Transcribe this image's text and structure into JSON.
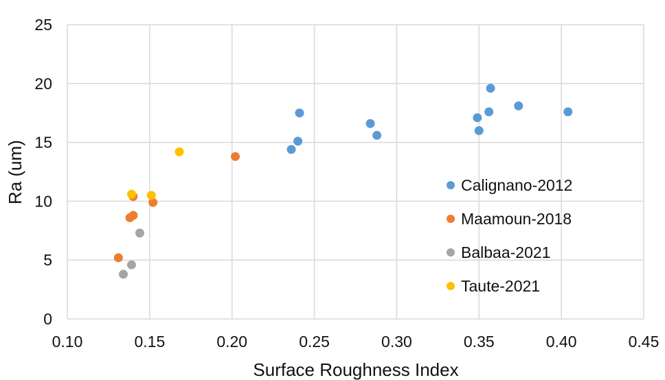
{
  "chart_data": {
    "type": "scatter",
    "title": "",
    "xlabel": "Surface Roughness Index",
    "ylabel": "Ra (um)",
    "xlim": [
      0.1,
      0.45
    ],
    "ylim": [
      0,
      25
    ],
    "x_ticks": [
      "0.10",
      "0.15",
      "0.20",
      "0.25",
      "0.30",
      "0.35",
      "0.40",
      "0.45"
    ],
    "y_ticks": [
      "0",
      "5",
      "10",
      "15",
      "20",
      "25"
    ],
    "grid": true,
    "legend_position": "right",
    "series": [
      {
        "name": "Calignano-2012",
        "color": "#5B9BD5",
        "points": [
          [
            0.236,
            14.4
          ],
          [
            0.24,
            15.1
          ],
          [
            0.241,
            17.5
          ],
          [
            0.284,
            16.6
          ],
          [
            0.288,
            15.6
          ],
          [
            0.349,
            17.1
          ],
          [
            0.35,
            16.0
          ],
          [
            0.356,
            17.6
          ],
          [
            0.357,
            19.6
          ],
          [
            0.374,
            18.1
          ],
          [
            0.404,
            17.6
          ]
        ]
      },
      {
        "name": "Maamoun-2018",
        "color": "#ED7D31",
        "points": [
          [
            0.131,
            5.2
          ],
          [
            0.138,
            8.6
          ],
          [
            0.14,
            8.8
          ],
          [
            0.14,
            10.4
          ],
          [
            0.152,
            9.9
          ],
          [
            0.202,
            13.8
          ]
        ]
      },
      {
        "name": "Balbaa-2021",
        "color": "#A5A5A5",
        "points": [
          [
            0.134,
            3.8
          ],
          [
            0.139,
            4.6
          ],
          [
            0.144,
            7.3
          ]
        ]
      },
      {
        "name": "Taute-2021",
        "color": "#FFC000",
        "points": [
          [
            0.139,
            10.6
          ],
          [
            0.151,
            10.5
          ],
          [
            0.168,
            14.2
          ]
        ]
      }
    ]
  }
}
